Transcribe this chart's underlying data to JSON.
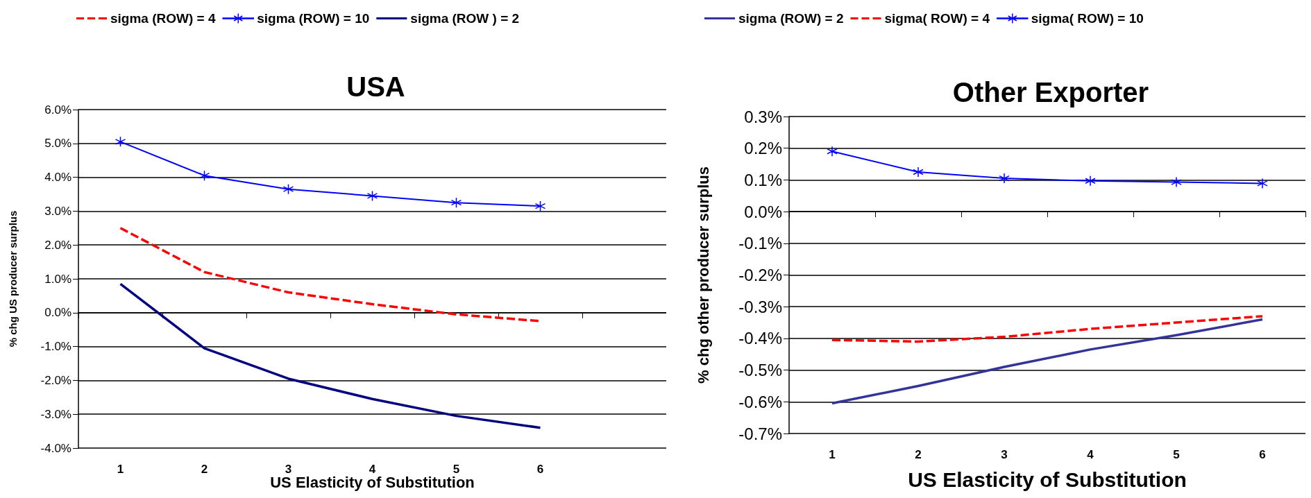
{
  "chart_data": [
    {
      "type": "line",
      "title": "USA",
      "xlabel": "US Elasticity of Substitution",
      "ylabel": "% chg US producer surplus",
      "categories": [
        "1",
        "2",
        "3",
        "4",
        "5",
        "6",
        null
      ],
      "series": [
        {
          "name": "sigma (ROW) = 4",
          "color": "#ff0000",
          "line_style": "dashed",
          "marker": "none",
          "values": [
            2.5,
            1.2,
            0.6,
            0.25,
            -0.05,
            -0.25,
            null
          ]
        },
        {
          "name": "sigma (ROW) = 10",
          "color": "#0000ff",
          "line_style": "solid",
          "marker": "cross",
          "values": [
            5.05,
            4.05,
            3.65,
            3.45,
            3.25,
            3.15,
            null
          ]
        },
        {
          "name": "sigma (ROW ) = 2",
          "color": "#000080",
          "line_style": "solid",
          "marker": "none",
          "values": [
            0.85,
            -1.05,
            -1.95,
            -2.55,
            -3.05,
            -3.4,
            null
          ]
        }
      ],
      "ylim": [
        -4,
        6
      ],
      "yticks": [
        {
          "value": -4,
          "label": "-4.0%"
        },
        {
          "value": -3,
          "label": "-3.0%"
        },
        {
          "value": -2,
          "label": "-2.0%"
        },
        {
          "value": -1,
          "label": "-1.0%"
        },
        {
          "value": 0,
          "label": "0.0%"
        },
        {
          "value": 1,
          "label": "1.0%"
        },
        {
          "value": 2,
          "label": "2.0%"
        },
        {
          "value": 3,
          "label": "3.0%"
        },
        {
          "value": 4,
          "label": "4.0%"
        },
        {
          "value": 5,
          "label": "5.0%"
        },
        {
          "value": 6,
          "label": "6.0%"
        }
      ],
      "grid": "y",
      "legend": "top"
    },
    {
      "type": "line",
      "title": "Other Exporter",
      "xlabel": "US Elasticity of Substitution",
      "ylabel": "% chg other producer surplus",
      "categories": [
        "1",
        "2",
        "3",
        "4",
        "5",
        "6"
      ],
      "series": [
        {
          "name": "sigma (ROW) = 2",
          "color": "#333399",
          "line_style": "solid",
          "marker": "none",
          "values": [
            -0.605,
            -0.55,
            -0.49,
            -0.435,
            -0.39,
            -0.34
          ]
        },
        {
          "name": "sigma( ROW) = 4",
          "color": "#ff0000",
          "line_style": "dashed",
          "marker": "none",
          "values": [
            -0.405,
            -0.41,
            -0.395,
            -0.37,
            -0.35,
            -0.33
          ]
        },
        {
          "name": "sigma( ROW) = 10",
          "color": "#0000ff",
          "line_style": "solid",
          "marker": "cross",
          "values": [
            0.19,
            0.125,
            0.105,
            0.097,
            0.093,
            0.089
          ]
        }
      ],
      "ylim": [
        -0.7,
        0.3
      ],
      "yticks": [
        {
          "value": -0.7,
          "label": "-0.7%"
        },
        {
          "value": -0.6,
          "label": "-0.6%"
        },
        {
          "value": -0.5,
          "label": "-0.5%"
        },
        {
          "value": -0.4,
          "label": "-0.4%"
        },
        {
          "value": -0.3,
          "label": "-0.3%"
        },
        {
          "value": -0.2,
          "label": "-0.2%"
        },
        {
          "value": -0.1,
          "label": "-0.1%"
        },
        {
          "value": 0,
          "label": "0.0%"
        },
        {
          "value": 0.1,
          "label": "0.1%"
        },
        {
          "value": 0.2,
          "label": "0.2%"
        },
        {
          "value": 0.3,
          "label": "0.3%"
        }
      ],
      "grid": "y",
      "legend": "top"
    }
  ]
}
